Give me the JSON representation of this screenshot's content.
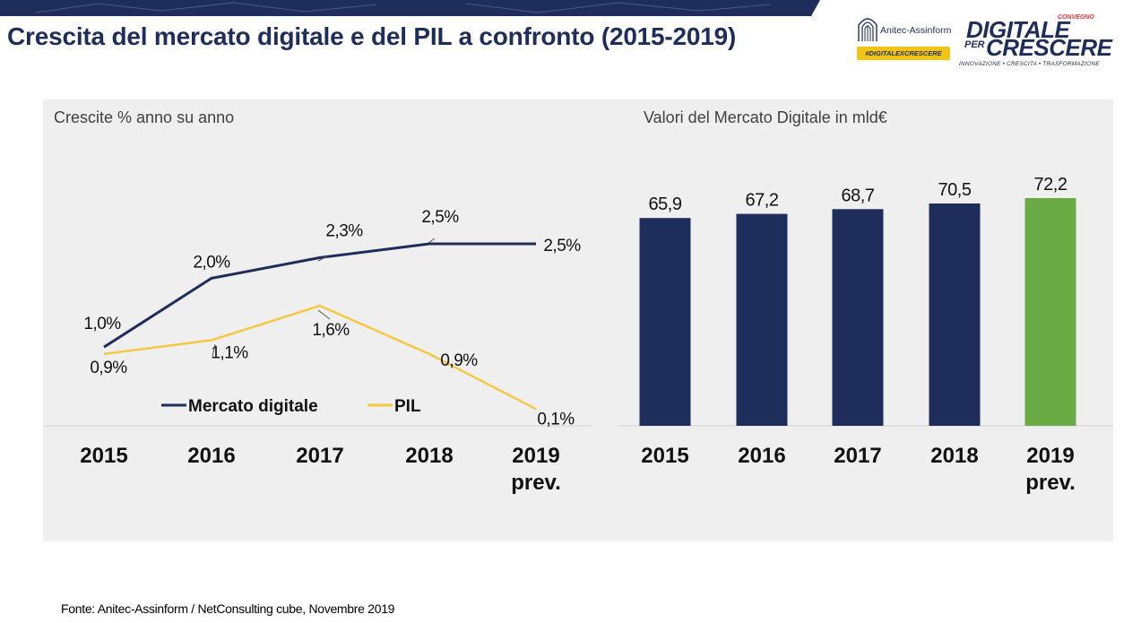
{
  "header": {
    "title": "Crescita del mercato digitale e del PIL a confronto (2015-2019)"
  },
  "logos": {
    "anitec": {
      "name": "Anitec-Assinform",
      "hashtag": "#DIGITALEXCRESCERE"
    },
    "convegno": {
      "small": "CONVEGNO",
      "line1": "DIGITALE",
      "per": "PER",
      "line2": "CRESCERE",
      "tagline": "INNOVAZIONE • CRESCITA • TRASFORMAZIONE"
    }
  },
  "left_panel": {
    "subtitle": "Crescite % anno su anno"
  },
  "right_panel": {
    "subtitle": "Valori del Mercato Digitale in mld€"
  },
  "footer": {
    "source": "Fonte: Anitec-Assinform / NetConsulting cube, Novembre  2019"
  },
  "colors": {
    "navy": "#1f2d5a",
    "yellow": "#f5c842",
    "green": "#6aab45",
    "panel": "#efefef"
  },
  "chart_data": [
    {
      "type": "line",
      "title": "Crescite % anno su anno",
      "categories": [
        "2015",
        "2016",
        "2017",
        "2018",
        "2019\nprev."
      ],
      "series": [
        {
          "name": "Mercato digitale",
          "color": "#1f2d5a",
          "values": [
            1.0,
            2.0,
            2.3,
            2.5,
            2.5
          ],
          "labels": [
            "1,0%",
            "2,0%",
            "2,3%",
            "2,5%",
            "2,5%"
          ]
        },
        {
          "name": "PIL",
          "color": "#f5c842",
          "values": [
            0.9,
            1.1,
            1.6,
            0.9,
            0.1
          ],
          "labels": [
            "0,9%",
            "1,1%",
            "1,6%",
            "0,9%",
            "0,1%"
          ]
        }
      ],
      "ylim": [
        0,
        3
      ],
      "legend": "bottom",
      "grid": false
    },
    {
      "type": "bar",
      "title": "Valori del Mercato Digitale in mld€",
      "categories": [
        "2015",
        "2016",
        "2017",
        "2018",
        "2019\nprev."
      ],
      "values": [
        65.9,
        67.2,
        68.7,
        70.5,
        72.2
      ],
      "labels": [
        "65,9",
        "67,2",
        "68,7",
        "70,5",
        "72,2"
      ],
      "colors": [
        "#1f2d5a",
        "#1f2d5a",
        "#1f2d5a",
        "#1f2d5a",
        "#6aab45"
      ],
      "grid": false
    }
  ]
}
